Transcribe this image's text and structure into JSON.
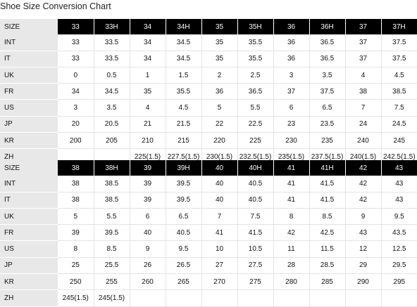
{
  "title": "Shoe Size Conversion Chart",
  "tables": [
    {
      "header_label": "SIZE",
      "sizes": [
        "33",
        "33H",
        "34",
        "34H",
        "35",
        "35H",
        "36",
        "36H",
        "37",
        "37H"
      ],
      "rows": [
        {
          "label": "INT",
          "values": [
            "33",
            "33.5",
            "34",
            "34.5",
            "35",
            "35.5",
            "36",
            "36.5",
            "37",
            "37.5"
          ]
        },
        {
          "label": "IT",
          "values": [
            "33",
            "33.5",
            "34",
            "34.5",
            "35",
            "35.5",
            "36",
            "36.5",
            "37",
            "37.5"
          ]
        },
        {
          "label": "UK",
          "values": [
            "0",
            "0.5",
            "1",
            "1.5",
            "2",
            "2.5",
            "3",
            "3.5",
            "4",
            "4.5"
          ]
        },
        {
          "label": "FR",
          "values": [
            "34",
            "34.5",
            "35",
            "35.5",
            "36",
            "36.5",
            "37",
            "37.5",
            "38",
            "38.5"
          ]
        },
        {
          "label": "US",
          "values": [
            "3",
            "3.5",
            "4",
            "4.5",
            "5",
            "5.5",
            "6",
            "6.5",
            "7",
            "7.5"
          ]
        },
        {
          "label": "JP",
          "values": [
            "20",
            "20.5",
            "21",
            "21.5",
            "22",
            "22.5",
            "23",
            "23.5",
            "24",
            "24.5"
          ]
        },
        {
          "label": "KR",
          "values": [
            "200",
            "205",
            "210",
            "215",
            "220",
            "225",
            "230",
            "235",
            "240",
            "245"
          ]
        },
        {
          "label": "ZH",
          "values": [
            "",
            "",
            "225(1.5)",
            "227.5(1.5)",
            "230(1.5)",
            "232.5(1.5)",
            "235(1.5)",
            "237.5(1.5)",
            "240(1.5)",
            "242.5(1.5)"
          ]
        }
      ]
    },
    {
      "header_label": "SIZE",
      "sizes": [
        "38",
        "38H",
        "39",
        "39H",
        "40",
        "40H",
        "41",
        "41H",
        "42",
        "43"
      ],
      "rows": [
        {
          "label": "INT",
          "values": [
            "38",
            "38.5",
            "39",
            "39.5",
            "40",
            "40.5",
            "41",
            "41.5",
            "42",
            "43"
          ]
        },
        {
          "label": "IT",
          "values": [
            "38",
            "38.5",
            "39",
            "39.5",
            "40",
            "40.5",
            "41",
            "41.5",
            "42",
            "43"
          ]
        },
        {
          "label": "UK",
          "values": [
            "5",
            "5.5",
            "6",
            "6.5",
            "7",
            "7.5",
            "8",
            "8.5",
            "9",
            "9.5"
          ]
        },
        {
          "label": "FR",
          "values": [
            "39",
            "39.5",
            "40",
            "40.5",
            "41",
            "41.5",
            "42",
            "42.5",
            "43",
            "43.5"
          ]
        },
        {
          "label": "US",
          "values": [
            "8",
            "8.5",
            "9",
            "9.5",
            "10",
            "10.5",
            "11",
            "11.5",
            "12",
            "12.5"
          ]
        },
        {
          "label": "JP",
          "values": [
            "25",
            "25.5",
            "26",
            "26.5",
            "27",
            "27.5",
            "28",
            "28.5",
            "29",
            "29.5"
          ]
        },
        {
          "label": "KR",
          "values": [
            "250",
            "255",
            "260",
            "265",
            "270",
            "275",
            "280",
            "285",
            "290",
            "295"
          ]
        },
        {
          "label": "ZH",
          "values": [
            "245(1.5)",
            "245(1.5)",
            "",
            "",
            "",
            "",
            "",
            "",
            "",
            ""
          ]
        }
      ]
    }
  ]
}
